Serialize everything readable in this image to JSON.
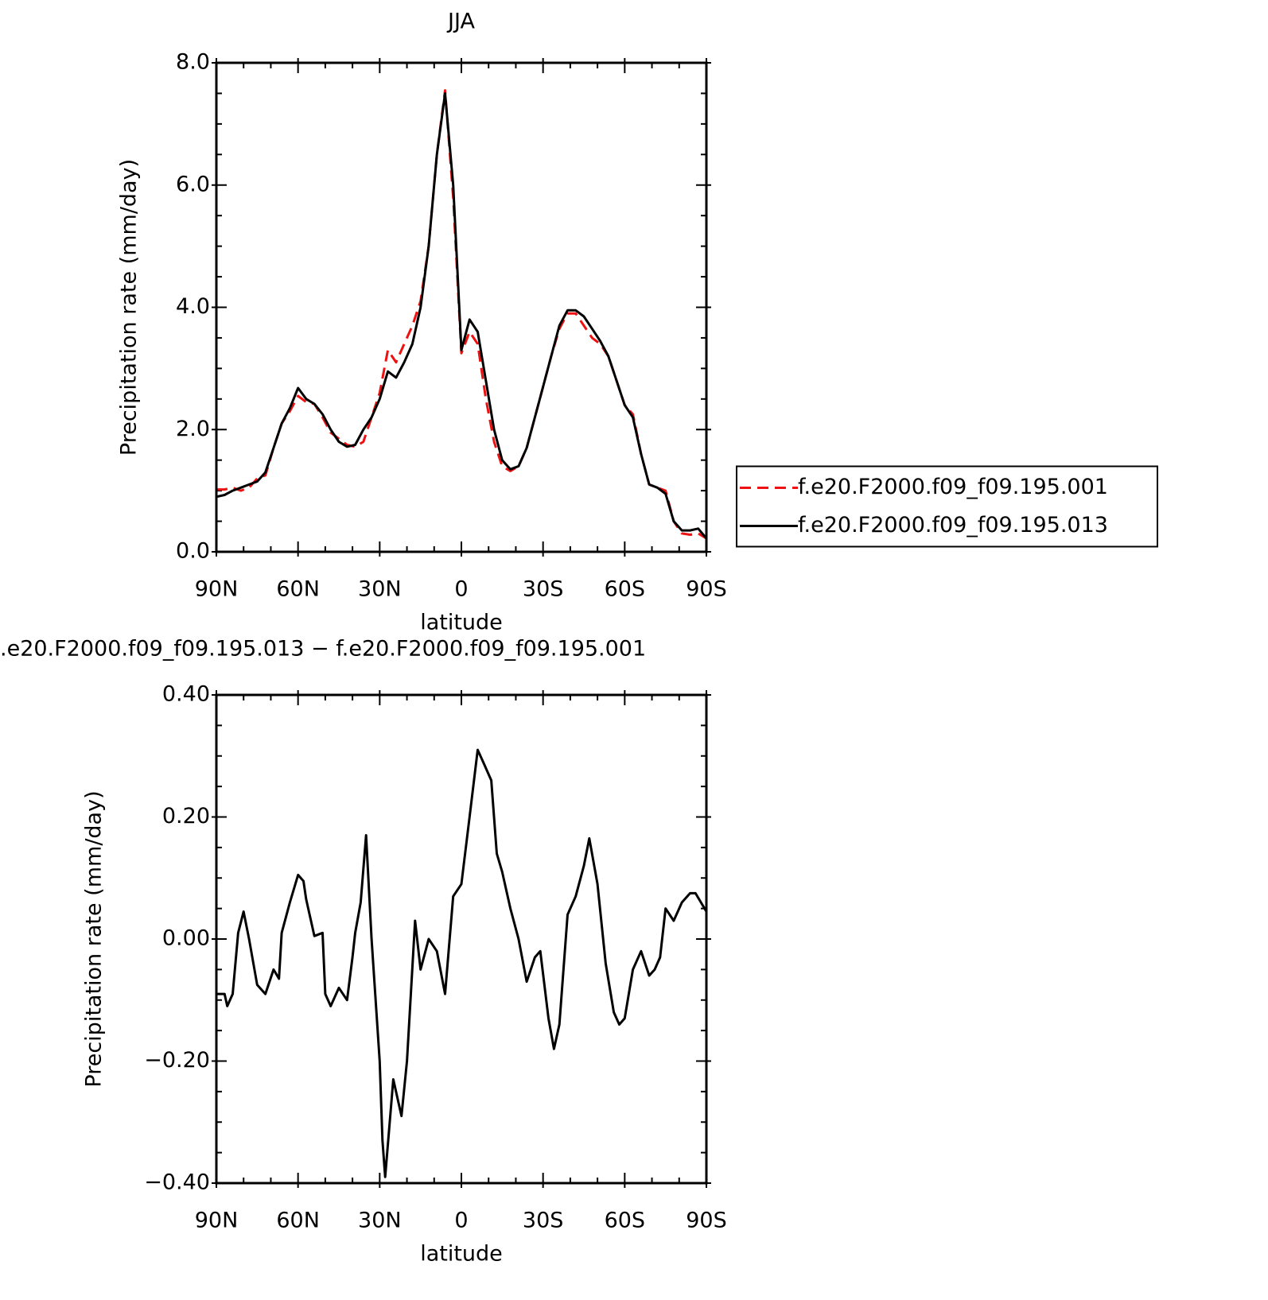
{
  "chart_data": [
    {
      "type": "line",
      "title": "JJA",
      "xlabel": "latitude",
      "ylabel": "Precipitation rate (mm/day)",
      "x": [
        90,
        87,
        84,
        81,
        78,
        75,
        72,
        69,
        66,
        63,
        60,
        57,
        54,
        51,
        48,
        45,
        42,
        39,
        36,
        33,
        30,
        27,
        24,
        21,
        18,
        15,
        12,
        9,
        6,
        3,
        0,
        -3,
        -6,
        -9,
        -12,
        -15,
        -18,
        -21,
        -24,
        -27,
        -30,
        -33,
        -36,
        -39,
        -42,
        -45,
        -48,
        -51,
        -54,
        -57,
        -60,
        -63,
        -66,
        -69,
        -72,
        -75,
        -78,
        -81,
        -84,
        -87,
        -90
      ],
      "series": [
        {
          "name": "f.e20.F2000.f09_f09.195.001",
          "color": "#ee1111",
          "dashed": true,
          "values": [
            1.02,
            1.02,
            1.05,
            1.0,
            1.05,
            1.2,
            1.25,
            1.7,
            2.1,
            2.3,
            2.55,
            2.45,
            2.42,
            2.2,
            1.95,
            1.85,
            1.75,
            1.72,
            1.8,
            2.2,
            2.6,
            3.3,
            3.1,
            3.4,
            3.7,
            4.1,
            5.0,
            6.5,
            7.55,
            5.8,
            3.25,
            3.6,
            3.4,
            2.5,
            1.8,
            1.4,
            1.32,
            1.4,
            1.7,
            2.2,
            2.7,
            3.2,
            3.65,
            3.9,
            3.9,
            3.7,
            3.5,
            3.4,
            3.2,
            2.8,
            2.4,
            2.25,
            1.6,
            1.1,
            1.05,
            1.0,
            0.5,
            0.3,
            0.28,
            0.3,
            0.22
          ]
        },
        {
          "name": "f.e20.F2000.f09_f09.195.013",
          "color": "#000000",
          "dashed": false,
          "values": [
            0.9,
            0.93,
            1.0,
            1.05,
            1.1,
            1.15,
            1.3,
            1.7,
            2.1,
            2.35,
            2.68,
            2.5,
            2.42,
            2.25,
            2.0,
            1.8,
            1.72,
            1.75,
            2.0,
            2.2,
            2.5,
            2.95,
            2.85,
            3.1,
            3.4,
            4.0,
            5.0,
            6.5,
            7.5,
            6.0,
            3.3,
            3.8,
            3.6,
            2.8,
            2.0,
            1.5,
            1.35,
            1.4,
            1.7,
            2.2,
            2.7,
            3.2,
            3.7,
            3.95,
            3.95,
            3.85,
            3.65,
            3.45,
            3.2,
            2.8,
            2.4,
            2.2,
            1.6,
            1.1,
            1.05,
            0.95,
            0.5,
            0.35,
            0.35,
            0.38,
            0.22
          ]
        }
      ],
      "xlim": [
        90,
        -90
      ],
      "xticks": [
        {
          "value": 90,
          "label": "90N"
        },
        {
          "value": 60,
          "label": "60N"
        },
        {
          "value": 30,
          "label": "30N"
        },
        0,
        {
          "value": -30,
          "label": "30S"
        },
        {
          "value": -60,
          "label": "60S"
        },
        {
          "value": -90,
          "label": "90S"
        }
      ],
      "ylim": [
        0,
        8
      ],
      "yticks": [
        {
          "value": 0,
          "label": "0.0"
        },
        {
          "value": 2,
          "label": "2.0"
        },
        {
          "value": 4,
          "label": "4.0"
        },
        {
          "value": 6,
          "label": "6.0"
        },
        {
          "value": 8,
          "label": "8.0"
        }
      ],
      "legend": "right"
    },
    {
      "type": "line",
      "title": ".e20.F2000.f09_f09.195.013 − f.e20.F2000.f09_f09.195.001",
      "xlabel": "latitude",
      "ylabel": "Precipitation rate (mm/day)",
      "x": [
        90,
        87,
        86,
        84,
        82,
        80,
        78,
        75,
        72,
        69,
        67,
        66,
        63,
        60,
        58,
        57,
        54,
        51,
        50,
        48,
        45,
        42,
        40,
        39,
        37,
        35,
        33,
        30,
        29,
        28,
        25,
        22,
        20,
        17,
        15,
        12,
        9,
        6,
        3,
        0,
        -3,
        -6,
        -8,
        -11,
        -13,
        -15,
        -18,
        -21,
        -24,
        -27,
        -29,
        -32,
        -34,
        -36,
        -39,
        -42,
        -45,
        -47,
        -50,
        -53,
        -56,
        -58,
        -60,
        -63,
        -66,
        -69,
        -71,
        -73,
        -75,
        -78,
        -81,
        -84,
        -86,
        -88,
        -90
      ],
      "series": [
        {
          "color": "#000000",
          "dashed": false,
          "values": [
            -0.09,
            -0.09,
            -0.11,
            -0.09,
            0.01,
            0.045,
            0.0,
            -0.075,
            -0.09,
            -0.05,
            -0.065,
            0.01,
            0.06,
            0.105,
            0.095,
            0.065,
            0.005,
            0.01,
            -0.09,
            -0.11,
            -0.08,
            -0.1,
            -0.03,
            0.01,
            0.06,
            0.17,
            0.0,
            -0.2,
            -0.33,
            -0.39,
            -0.23,
            -0.29,
            -0.2,
            0.03,
            -0.05,
            0.0,
            -0.02,
            -0.09,
            0.07,
            0.09,
            0.2,
            0.31,
            0.29,
            0.26,
            0.14,
            0.11,
            0.05,
            0.0,
            -0.07,
            -0.03,
            -0.02,
            -0.13,
            -0.18,
            -0.14,
            0.04,
            0.07,
            0.12,
            0.165,
            0.09,
            -0.04,
            -0.12,
            -0.14,
            -0.13,
            -0.05,
            -0.02,
            -0.06,
            -0.05,
            -0.03,
            0.05,
            0.03,
            0.06,
            0.075,
            0.075,
            0.06,
            0.045
          ]
        }
      ],
      "xlim": [
        90,
        -90
      ],
      "xticks": [
        {
          "value": 90,
          "label": "90N"
        },
        {
          "value": 60,
          "label": "60N"
        },
        {
          "value": 30,
          "label": "30N"
        },
        0,
        {
          "value": -30,
          "label": "30S"
        },
        {
          "value": -60,
          "label": "60S"
        },
        {
          "value": -90,
          "label": "90S"
        }
      ],
      "ylim": [
        -0.4,
        0.4
      ],
      "yticks": [
        {
          "value": -0.4,
          "label": "−0.40"
        },
        {
          "value": -0.2,
          "label": "−0.20"
        },
        {
          "value": 0,
          "label": "0.00"
        },
        {
          "value": 0.2,
          "label": "0.20"
        },
        {
          "value": 0.4,
          "label": "0.40"
        }
      ]
    }
  ]
}
